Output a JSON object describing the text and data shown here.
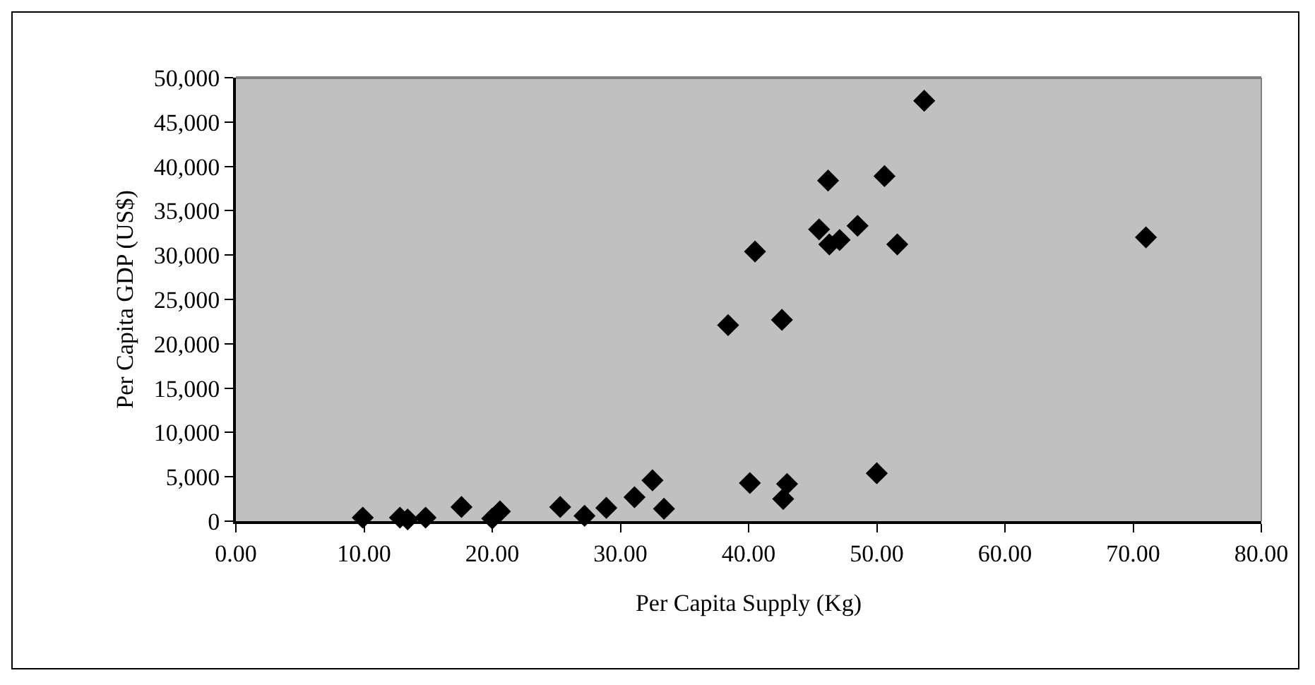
{
  "chart_data": {
    "type": "scatter",
    "xlabel": "Per Capita Supply (Kg)",
    "ylabel": "Per Capita GDP (US$)",
    "x": [
      9.9,
      12.8,
      13.4,
      14.8,
      17.6,
      20.0,
      20.6,
      25.3,
      27.2,
      28.9,
      31.1,
      32.5,
      33.4,
      40.1,
      43.0,
      42.7,
      50.0,
      53.7,
      46.2,
      50.6,
      45.5,
      48.5,
      46.3,
      47.1,
      51.6,
      40.5,
      38.4,
      42.6,
      71.0
    ],
    "series": [
      {
        "color": "#000000",
        "values": [
          400,
          400,
          200,
          400,
          1600,
          300,
          1100,
          1600,
          600,
          1500,
          2700,
          4600,
          1400,
          4300,
          4200,
          2500,
          5400,
          47400,
          38400,
          38900,
          32900,
          33300,
          31200,
          31700,
          31200,
          30400,
          22100,
          22700,
          32000
        ]
      }
    ],
    "xlim": [
      0,
      80
    ],
    "xticks": [
      {
        "value": 0,
        "label": "0.00"
      },
      {
        "value": 10,
        "label": "10.00"
      },
      {
        "value": 20,
        "label": "20.00"
      },
      {
        "value": 30,
        "label": "30.00"
      },
      {
        "value": 40,
        "label": "40.00"
      },
      {
        "value": 50,
        "label": "50.00"
      },
      {
        "value": 60,
        "label": "60.00"
      },
      {
        "value": 70,
        "label": "70.00"
      },
      {
        "value": 80,
        "label": "80.00"
      }
    ],
    "ylim": [
      0,
      50000
    ],
    "yticks": [
      {
        "value": 0,
        "label": "0"
      },
      {
        "value": 5000,
        "label": "5,000"
      },
      {
        "value": 10000,
        "label": "10,000"
      },
      {
        "value": 15000,
        "label": "15,000"
      },
      {
        "value": 20000,
        "label": "20,000"
      },
      {
        "value": 25000,
        "label": "25,000"
      },
      {
        "value": 30000,
        "label": "30,000"
      },
      {
        "value": 35000,
        "label": "35,000"
      },
      {
        "value": 40000,
        "label": "40,000"
      },
      {
        "value": 45000,
        "label": "45,000"
      },
      {
        "value": 50000,
        "label": "50,000"
      }
    ],
    "grid": false,
    "marker": "diamond"
  }
}
